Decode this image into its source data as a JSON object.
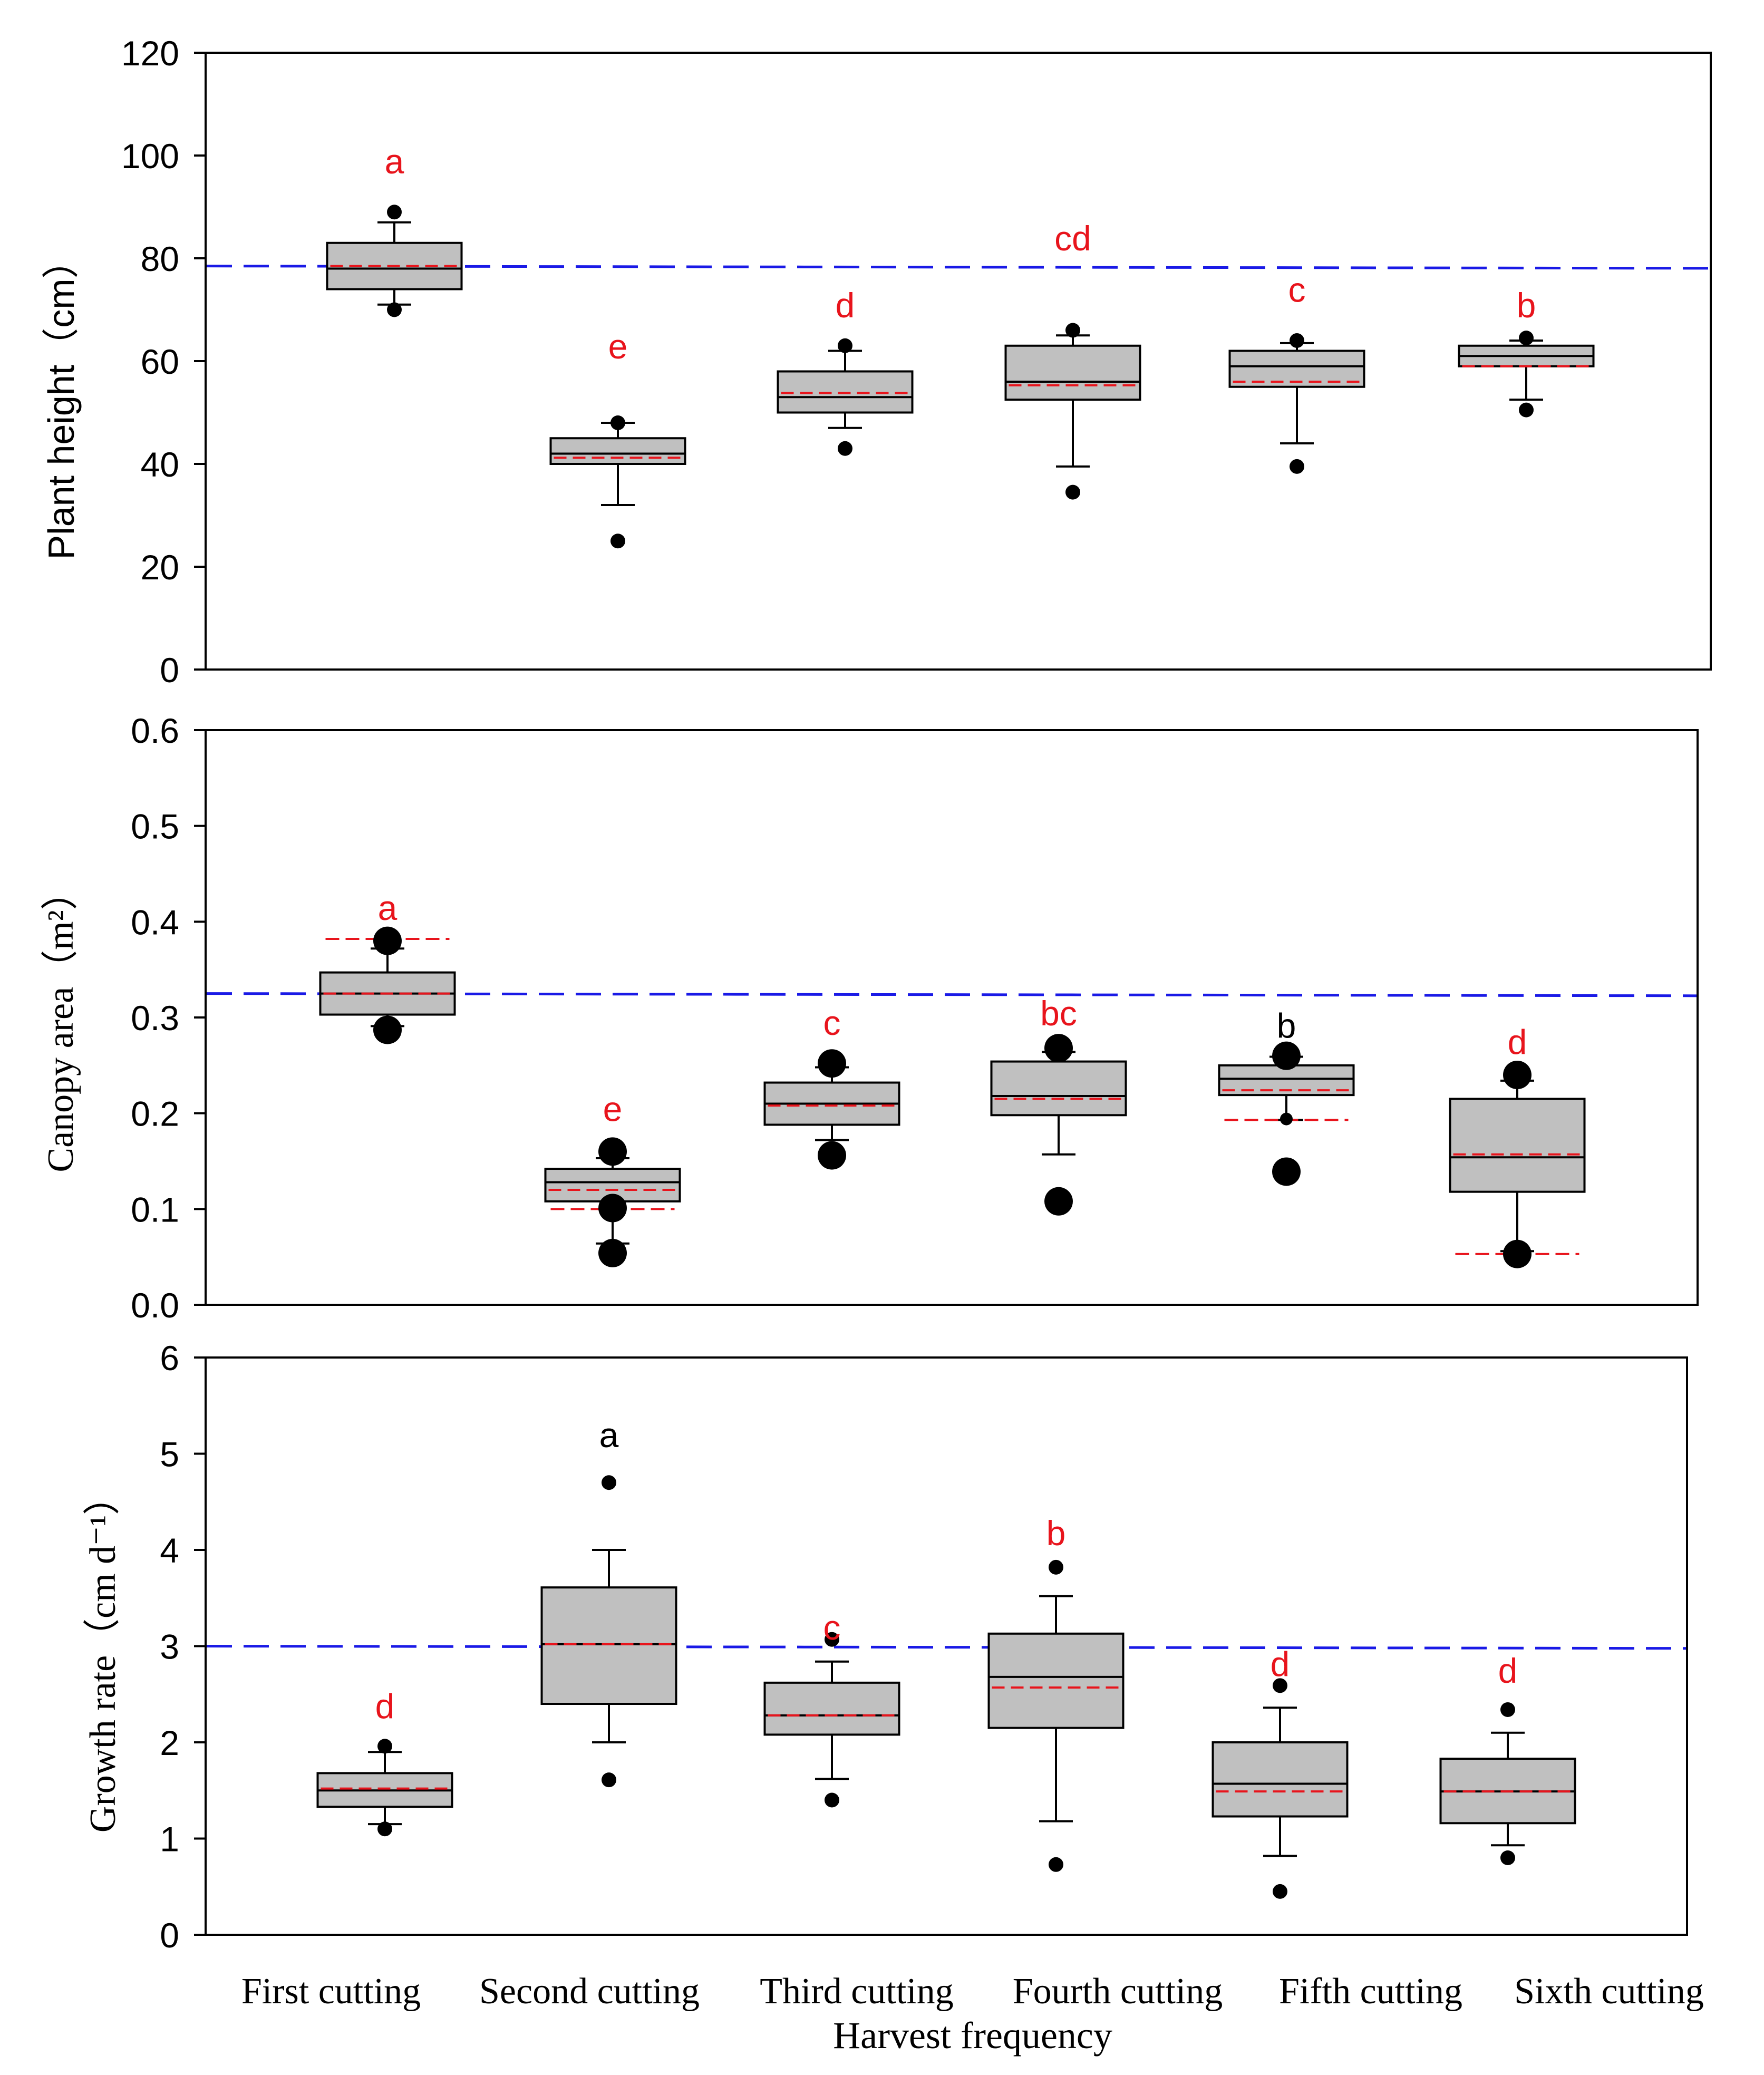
{
  "chart_data": [
    {
      "type": "box",
      "ylabel": "Plant height（cm）",
      "ylim": [
        0,
        120
      ],
      "yticks": [
        "0",
        "20",
        "40",
        "60",
        "80",
        "100",
        "120"
      ],
      "reference_mean": 78.5,
      "categories": [
        "First cutting",
        "Second cutting",
        "Third cutting",
        "Fourth cutting",
        "Fifth cutting",
        "Sixth cutting"
      ],
      "boxes": [
        {
          "q1": 74,
          "median": 78,
          "q3": 83,
          "mean": 78.5,
          "whisker_low": 71,
          "whisker_high": 87,
          "outliers": [
            70,
            89
          ],
          "letter": "a",
          "letter_y": 99,
          "letter_color": "#e8141c"
        },
        {
          "q1": 40,
          "median": 42,
          "q3": 45,
          "mean": 41.2,
          "whisker_low": 32,
          "whisker_high": 48,
          "outliers": [
            25,
            48
          ],
          "letter": "e",
          "letter_y": 63,
          "letter_color": "#e8141c"
        },
        {
          "q1": 50,
          "median": 53,
          "q3": 58,
          "mean": 53.8,
          "whisker_low": 47,
          "whisker_high": 62,
          "outliers": [
            43,
            63
          ],
          "letter": "d",
          "letter_y": 71,
          "letter_color": "#e8141c"
        },
        {
          "q1": 52.5,
          "median": 56,
          "q3": 63,
          "mean": 55.3,
          "whisker_low": 39.5,
          "whisker_high": 65,
          "outliers": [
            34.5,
            66
          ],
          "letter": "cd",
          "letter_y": 84,
          "letter_color": "#e8141c"
        },
        {
          "q1": 55,
          "median": 59,
          "q3": 62,
          "mean": 56,
          "whisker_low": 44,
          "whisker_high": 63.5,
          "outliers": [
            39.5,
            64
          ],
          "letter": "c",
          "letter_y": 74,
          "letter_color": "#e8141c"
        },
        {
          "q1": 59,
          "median": 61,
          "q3": 63,
          "mean": 59,
          "whisker_low": 52.5,
          "whisker_high": 64,
          "outliers": [
            50.5,
            64.5
          ],
          "letter": "b",
          "letter_y": 71,
          "letter_color": "#e8141c"
        }
      ]
    },
    {
      "type": "box",
      "ylabel": "Canopy area（m²）",
      "ylim": [
        0,
        0.6
      ],
      "yticks": [
        "0.0",
        "0.1",
        "0.2",
        "0.3",
        "0.4",
        "0.5",
        "0.6"
      ],
      "reference_mean": 0.325,
      "categories": [
        "First cutting",
        "Second cutting",
        "Third cutting",
        "Fourth cutting",
        "Fifth cutting",
        "Sixth cutting"
      ],
      "boxes": [
        {
          "q1": 0.303,
          "median": 0.325,
          "q3": 0.347,
          "mean": 0.325,
          "whisker_low": 0.291,
          "whisker_high": 0.372,
          "outliers": [
            0.287,
            0.38
          ],
          "extra_dashes": [
            0.382
          ],
          "letter": "a",
          "letter_y": 0.415,
          "letter_color": "#e8141c"
        },
        {
          "q1": 0.108,
          "median": 0.128,
          "q3": 0.142,
          "mean": 0.12,
          "whisker_low": 0.064,
          "whisker_high": 0.153,
          "outliers": [
            0.054,
            0.101,
            0.16
          ],
          "extra_dashes": [
            0.1
          ],
          "letter": "e",
          "letter_y": 0.205,
          "letter_color": "#e8141c"
        },
        {
          "q1": 0.188,
          "median": 0.21,
          "q3": 0.232,
          "mean": 0.208,
          "whisker_low": 0.172,
          "whisker_high": 0.248,
          "outliers": [
            0.156,
            0.252
          ],
          "extra_dashes": [],
          "letter": "c",
          "letter_y": 0.295,
          "letter_color": "#e8141c"
        },
        {
          "q1": 0.198,
          "median": 0.218,
          "q3": 0.254,
          "mean": 0.215,
          "whisker_low": 0.157,
          "whisker_high": 0.264,
          "outliers": [
            0.108,
            0.268
          ],
          "extra_dashes": [],
          "letter": "bc",
          "letter_y": 0.305,
          "letter_color": "#e8141c"
        },
        {
          "q1": 0.219,
          "median": 0.236,
          "q3": 0.25,
          "mean": 0.224,
          "whisker_low": 0.193,
          "whisker_high": 0.259,
          "outliers": [
            0.139,
            0.194,
            0.26
          ],
          "extra_dashes": [
            0.193
          ],
          "letter": "b",
          "letter_y": 0.292,
          "letter_color": "#000000"
        },
        {
          "q1": 0.118,
          "median": 0.154,
          "q3": 0.215,
          "mean": 0.157,
          "whisker_low": 0.056,
          "whisker_high": 0.234,
          "outliers": [
            0.053,
            0.24
          ],
          "extra_dashes": [
            0.053
          ],
          "letter": "d",
          "letter_y": 0.275,
          "letter_color": "#e8141c"
        }
      ]
    },
    {
      "type": "box",
      "ylabel": "Growth rate（cm d⁻¹）",
      "ylim": [
        0,
        6
      ],
      "yticks": [
        "0",
        "1",
        "2",
        "3",
        "4",
        "5",
        "6"
      ],
      "reference_mean": 3.0,
      "categories": [
        "First cutting",
        "Second cutting",
        "Third cutting",
        "Fourth cutting",
        "Fifth cutting",
        "Sixth cutting"
      ],
      "boxes": [
        {
          "q1": 1.33,
          "median": 1.5,
          "q3": 1.68,
          "mean": 1.52,
          "whisker_low": 1.15,
          "whisker_high": 1.9,
          "outliers": [
            1.1,
            1.96
          ],
          "letter": "d",
          "letter_y": 2.38,
          "letter_color": "#e8141c"
        },
        {
          "q1": 2.4,
          "median": 3.02,
          "q3": 3.61,
          "mean": 3.02,
          "whisker_low": 2.0,
          "whisker_high": 4.0,
          "outliers": [
            1.61,
            4.7
          ],
          "letter": "a",
          "letter_y": 5.2,
          "letter_color": "#000000"
        },
        {
          "q1": 2.08,
          "median": 2.28,
          "q3": 2.62,
          "mean": 2.28,
          "whisker_low": 1.62,
          "whisker_high": 2.84,
          "outliers": [
            1.4,
            3.07
          ],
          "letter": "c",
          "letter_y": 3.2,
          "letter_color": "#e8141c"
        },
        {
          "q1": 2.15,
          "median": 2.68,
          "q3": 3.13,
          "mean": 2.57,
          "whisker_low": 1.18,
          "whisker_high": 3.52,
          "outliers": [
            0.73,
            3.82
          ],
          "letter": "b",
          "letter_y": 4.18,
          "letter_color": "#e8141c"
        },
        {
          "q1": 1.23,
          "median": 1.57,
          "q3": 2.0,
          "mean": 1.49,
          "whisker_low": 0.82,
          "whisker_high": 2.36,
          "outliers": [
            0.45,
            2.59
          ],
          "letter": "d",
          "letter_y": 2.82,
          "letter_color": "#e8141c"
        },
        {
          "q1": 1.16,
          "median": 1.49,
          "q3": 1.83,
          "mean": 1.49,
          "whisker_low": 0.93,
          "whisker_high": 2.1,
          "outliers": [
            0.8,
            2.34
          ],
          "letter": "d",
          "letter_y": 2.75,
          "letter_color": "#e8141c"
        }
      ]
    }
  ],
  "x_axis": {
    "title": "Harvest frequency",
    "labels": [
      "First cutting",
      "Second cutting",
      "Third cutting",
      "Fourth cutting",
      "Fifth cutting",
      "Sixth cutting"
    ]
  },
  "colors": {
    "box_fill": "#c0c0c0",
    "outline": "#000000",
    "mean_line": "#e8141c",
    "reference_line": "#1a1ae6",
    "letter_red": "#e8141c"
  }
}
